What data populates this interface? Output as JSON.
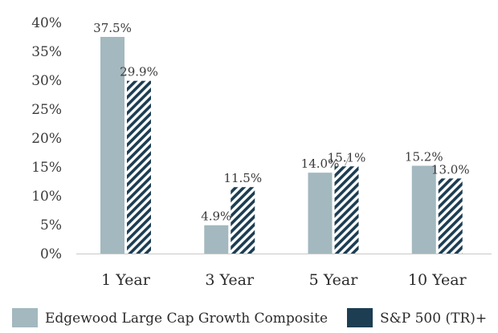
{
  "chart_data": {
    "type": "bar",
    "title": "",
    "xlabel": "",
    "ylabel": "",
    "categories": [
      "1 Year",
      "3 Year",
      "5 Year",
      "10 Year"
    ],
    "series": [
      {
        "name": "Edgewood Large Cap Growth Composite",
        "values": [
          37.5,
          4.9,
          14.0,
          15.2
        ],
        "labels": [
          "37.5%",
          "4.9%",
          "14.0%",
          "15.2%"
        ],
        "color": "#a3b8bf",
        "fill": "solid"
      },
      {
        "name": "S&P 500 (TR)+",
        "values": [
          29.9,
          11.5,
          15.1,
          13.0
        ],
        "labels": [
          "29.9%",
          "11.5%",
          "15.1%",
          "13.0%"
        ],
        "color": "#1c3d52",
        "fill": "diagonal-hatch"
      }
    ],
    "ylim": [
      0,
      40
    ],
    "yticks": [
      {
        "value": 0,
        "label": "0%"
      },
      {
        "value": 5,
        "label": "5%"
      },
      {
        "value": 10,
        "label": "10%"
      },
      {
        "value": 15,
        "label": "15%"
      },
      {
        "value": 20,
        "label": "20%"
      },
      {
        "value": 25,
        "label": "25%"
      },
      {
        "value": 30,
        "label": "30%"
      },
      {
        "value": 35,
        "label": "35%"
      },
      {
        "value": 40,
        "label": "40%"
      }
    ],
    "grid": false,
    "legend": "bottom"
  }
}
